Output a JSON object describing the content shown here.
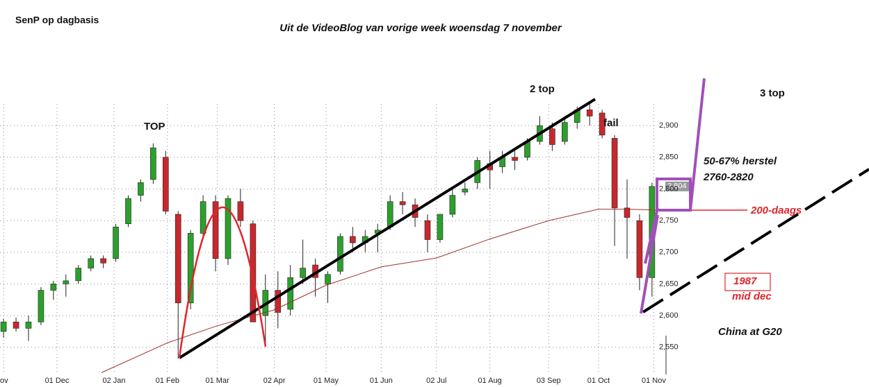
{
  "chart_data": {
    "type": "candlestick",
    "title": "SenP op dagbasis",
    "subtitle": "Uit de VideoBlog van vorige week woensdag 7 november",
    "x": [
      0,
      7,
      14,
      21,
      28,
      35,
      42,
      49,
      56,
      63,
      70,
      77,
      84,
      91,
      98,
      105,
      112,
      119,
      126,
      133,
      140,
      147,
      154,
      161,
      168,
      175,
      182,
      189,
      196,
      203,
      210,
      217,
      224,
      231,
      238,
      245,
      252,
      259,
      266,
      273,
      280,
      287,
      294,
      301,
      308,
      315,
      322,
      329,
      336,
      343,
      350,
      357,
      364
    ],
    "open": [
      2575,
      2590,
      2580,
      2590,
      2640,
      2650,
      2655,
      2675,
      2690,
      2690,
      2745,
      2790,
      2815,
      2850,
      2760,
      2620,
      2730,
      2780,
      2690,
      2780,
      2745,
      2600,
      2640,
      2610,
      2660,
      2680,
      2650,
      2670,
      2725,
      2715,
      2730,
      2740,
      2780,
      2775,
      2750,
      2720,
      2760,
      2795,
      2810,
      2840,
      2835,
      2850,
      2850,
      2875,
      2895,
      2875,
      2905,
      2925,
      2920,
      2880,
      2770,
      2750,
      2660
    ],
    "high": [
      2595,
      2597,
      2600,
      2645,
      2655,
      2665,
      2680,
      2695,
      2695,
      2745,
      2790,
      2815,
      2872,
      2860,
      2765,
      2735,
      2790,
      2790,
      2790,
      2800,
      2750,
      2665,
      2670,
      2680,
      2720,
      2690,
      2670,
      2730,
      2740,
      2735,
      2745,
      2790,
      2795,
      2785,
      2760,
      2760,
      2800,
      2810,
      2850,
      2860,
      2860,
      2860,
      2880,
      2915,
      2905,
      2915,
      2930,
      2935,
      2925,
      2885,
      2815,
      2760,
      2810
    ],
    "low": [
      2565,
      2575,
      2560,
      2585,
      2625,
      2630,
      2650,
      2670,
      2675,
      2685,
      2740,
      2780,
      2808,
      2760,
      2532,
      2610,
      2720,
      2670,
      2680,
      2740,
      2590,
      2553,
      2580,
      2600,
      2650,
      2630,
      2620,
      2665,
      2700,
      2700,
      2700,
      2735,
      2760,
      2740,
      2700,
      2715,
      2755,
      2790,
      2800,
      2800,
      2825,
      2830,
      2845,
      2870,
      2860,
      2870,
      2895,
      2900,
      2880,
      2710,
      2690,
      2640,
      2630
    ],
    "close": [
      2590,
      2580,
      2590,
      2640,
      2650,
      2655,
      2675,
      2690,
      2683,
      2740,
      2785,
      2810,
      2865,
      2765,
      2620,
      2730,
      2780,
      2690,
      2785,
      2750,
      2590,
      2640,
      2605,
      2660,
      2675,
      2660,
      2665,
      2725,
      2715,
      2725,
      2735,
      2780,
      2775,
      2755,
      2720,
      2760,
      2790,
      2800,
      2845,
      2830,
      2850,
      2845,
      2875,
      2900,
      2870,
      2905,
      2925,
      2915,
      2885,
      2770,
      2755,
      2660,
      2804
    ],
    "up_color": "#2ca02c",
    "down_color": "#c8282d",
    "moving_average": {
      "color": "#a0302a",
      "x": [
        55,
        92,
        120,
        152,
        181,
        212,
        243,
        273,
        306,
        334,
        350,
        364
      ],
      "values": [
        2510,
        2557,
        2584,
        2609,
        2648,
        2677,
        2691,
        2721,
        2750,
        2768,
        2768,
        2767
      ]
    },
    "last_price": {
      "value": 2804,
      "label": "2,804"
    },
    "xlim": [
      -2,
      366
    ],
    "ylim": [
      2507,
      2956
    ],
    "xticks": [
      {
        "value": 0,
        "label": "ov"
      },
      {
        "value": 30,
        "label": "01 Dec"
      },
      {
        "value": 62,
        "label": "02 Jan"
      },
      {
        "value": 92,
        "label": "01 Feb"
      },
      {
        "value": 120,
        "label": "01 Mar"
      },
      {
        "value": 152,
        "label": "02 Apr"
      },
      {
        "value": 181,
        "label": "01 May"
      },
      {
        "value": 212,
        "label": "01 Jun"
      },
      {
        "value": 243,
        "label": "02 Jul"
      },
      {
        "value": 273,
        "label": "01 Aug"
      },
      {
        "value": 306,
        "label": "03 Sep"
      },
      {
        "value": 334,
        "label": "01 Oct"
      },
      {
        "value": 365,
        "label": "01 Nov"
      }
    ],
    "yticks": [
      {
        "value": 2550,
        "label": "2,550"
      },
      {
        "value": 2600,
        "label": "2,600"
      },
      {
        "value": 2650,
        "label": "2,650"
      },
      {
        "value": 2700,
        "label": "2,700"
      },
      {
        "value": 2750,
        "label": "2,750"
      },
      {
        "value": 2800,
        "label": "2,800"
      },
      {
        "value": 2850,
        "label": "2,850"
      },
      {
        "value": 2900,
        "label": "2,900"
      }
    ],
    "grid": true,
    "annotations": [
      "TOP",
      "2 top",
      "fail",
      "3 top",
      "50-67% herstel",
      "2760-2820",
      "200-daags",
      "1987",
      "mid dec",
      "China at G20"
    ]
  }
}
